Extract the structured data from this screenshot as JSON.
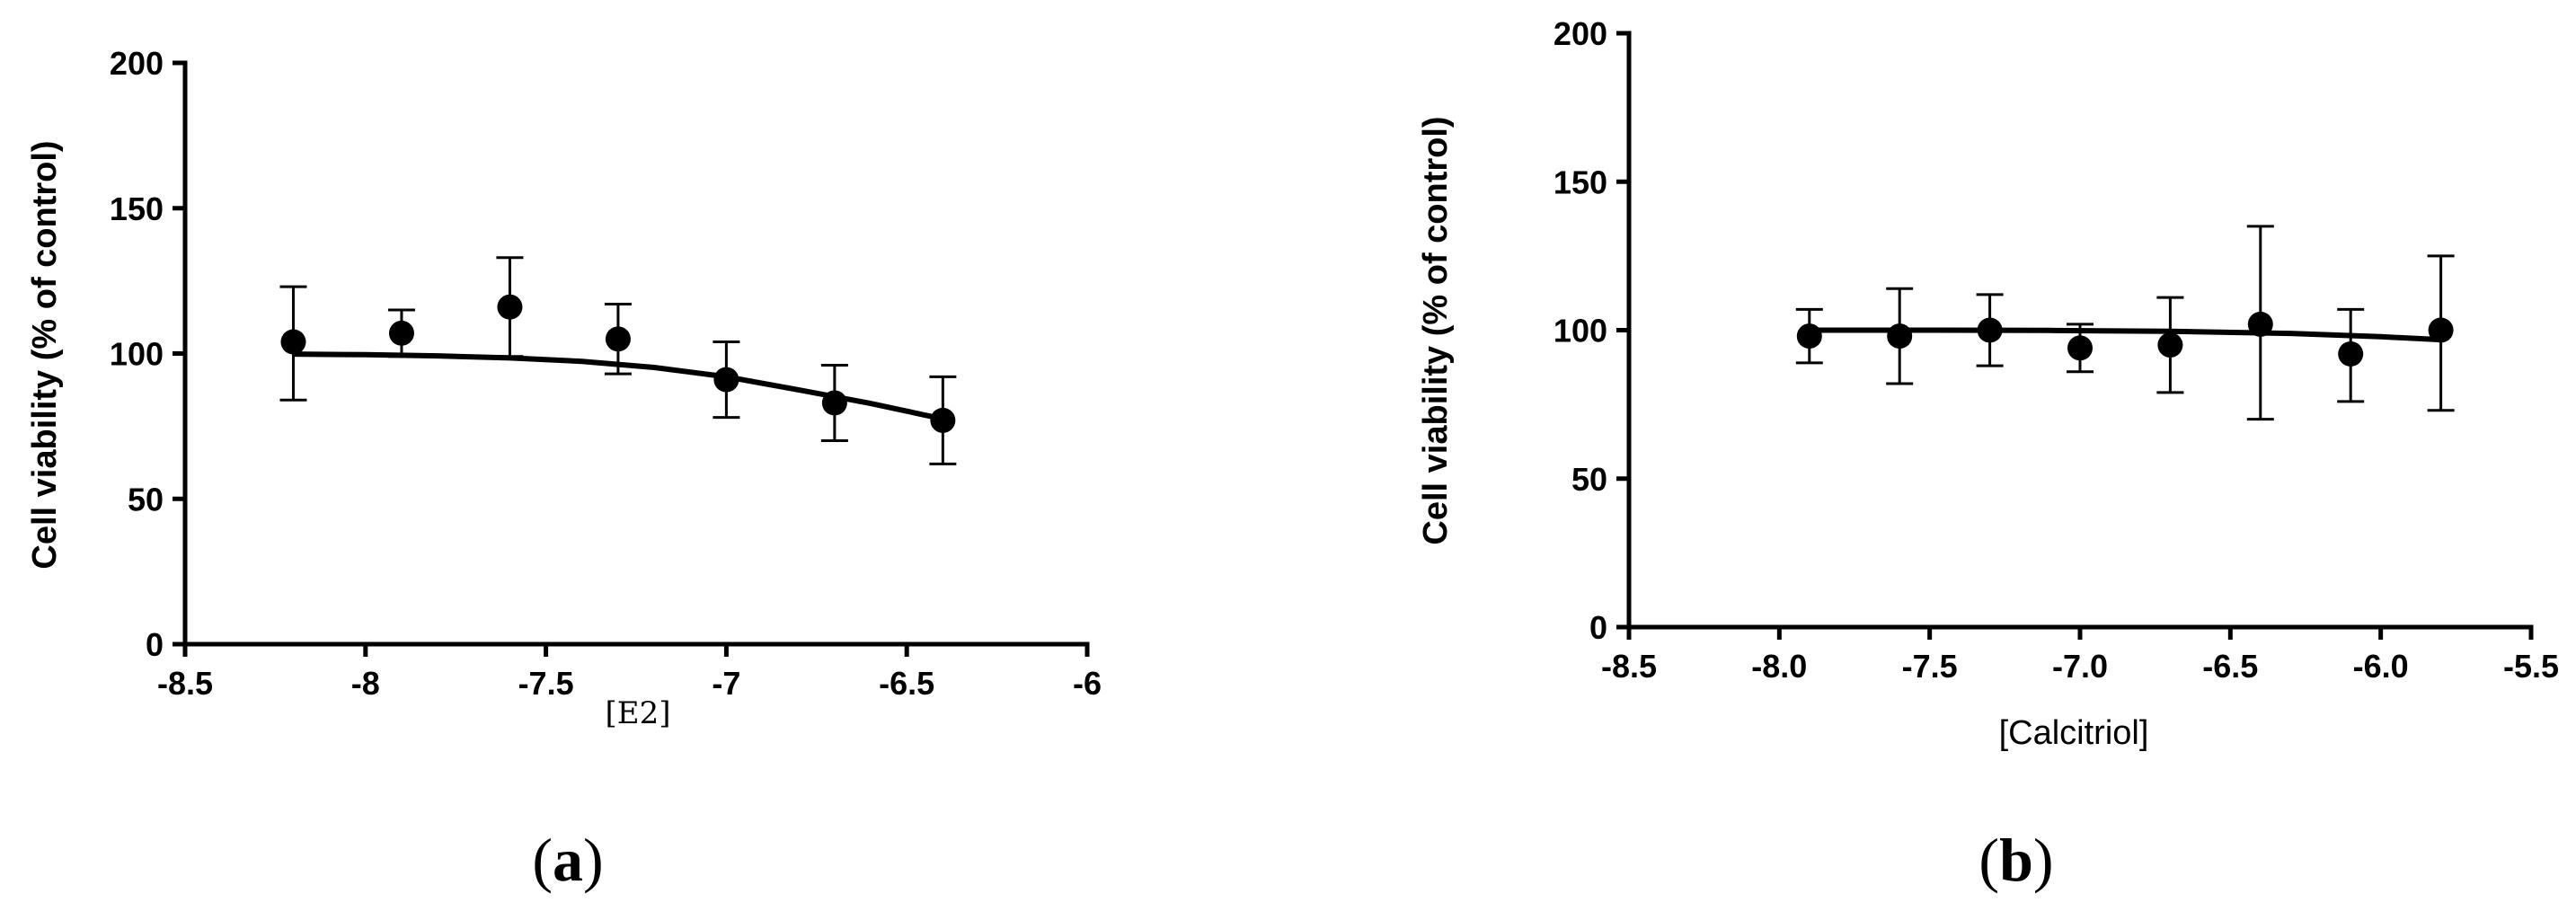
{
  "chart_data": [
    {
      "type": "scatter",
      "panel_label": {
        "open": "(",
        "letter": "a",
        "close": ")"
      },
      "xlabel": "[E2]",
      "ylabel": "Cell viability (% of control)",
      "xlim": [
        -8.5,
        -6
      ],
      "ylim": [
        0,
        200
      ],
      "x_ticks": [
        -8.5,
        -8,
        -7.5,
        -7,
        -6.5,
        -6
      ],
      "x_tick_labels": [
        "-8.5",
        "-8",
        "-7.5",
        "-7",
        "-6.5",
        "-6"
      ],
      "y_ticks": [
        0,
        50,
        100,
        150,
        200
      ],
      "y_tick_labels": [
        "0",
        "50",
        "100",
        "150",
        "200"
      ],
      "series": [
        {
          "x": [
            -8.2,
            -7.9,
            -7.6,
            -7.3,
            -7.0,
            -6.7,
            -6.4
          ],
          "y": [
            104,
            107,
            116,
            105,
            91,
            83,
            77
          ],
          "yerr_upper": [
            123,
            115,
            133,
            117,
            104,
            96,
            92
          ],
          "yerr_lower": [
            84,
            99,
            99,
            93,
            78,
            70,
            62
          ]
        }
      ],
      "fit": {
        "x": [
          -8.2,
          -8.0,
          -7.8,
          -7.6,
          -7.4,
          -7.2,
          -7.0,
          -6.8,
          -6.6,
          -6.4
        ],
        "y": [
          99.8,
          99.6,
          99.2,
          98.5,
          97.3,
          95.2,
          92.0,
          87.5,
          82.8,
          77.5
        ]
      },
      "grid": false
    },
    {
      "type": "scatter",
      "panel_label": {
        "open": "(",
        "letter": "b",
        "close": ")"
      },
      "xlabel": "[Calcitriol]",
      "ylabel": "Cell viability (% of control)",
      "xlim": [
        -8.5,
        -5.5
      ],
      "ylim": [
        0,
        200
      ],
      "x_ticks": [
        -8.5,
        -8.0,
        -7.5,
        -7.0,
        -6.5,
        -6.0,
        -5.5
      ],
      "x_tick_labels": [
        "-8.5",
        "-8.0",
        "-7.5",
        "-7.0",
        "-6.5",
        "-6.0",
        "-5.5"
      ],
      "y_ticks": [
        0,
        50,
        100,
        150,
        200
      ],
      "y_tick_labels": [
        "0",
        "50",
        "100",
        "150",
        "200"
      ],
      "series": [
        {
          "x": [
            -7.9,
            -7.6,
            -7.3,
            -7.0,
            -6.7,
            -6.4,
            -6.1,
            -5.8
          ],
          "y": [
            98,
            98,
            100,
            94,
            95,
            102,
            92,
            100
          ],
          "yerr_upper": [
            107,
            114,
            112,
            102,
            111,
            135,
            107,
            125
          ],
          "yerr_lower": [
            89,
            82,
            88,
            86,
            79,
            70,
            76,
            73
          ]
        }
      ],
      "fit": {
        "x": [
          -7.9,
          -7.5,
          -7.1,
          -6.7,
          -6.3,
          -6.0,
          -5.8
        ],
        "y": [
          100.0,
          100.0,
          99.9,
          99.6,
          98.9,
          97.8,
          96.8
        ]
      },
      "grid": false
    }
  ]
}
